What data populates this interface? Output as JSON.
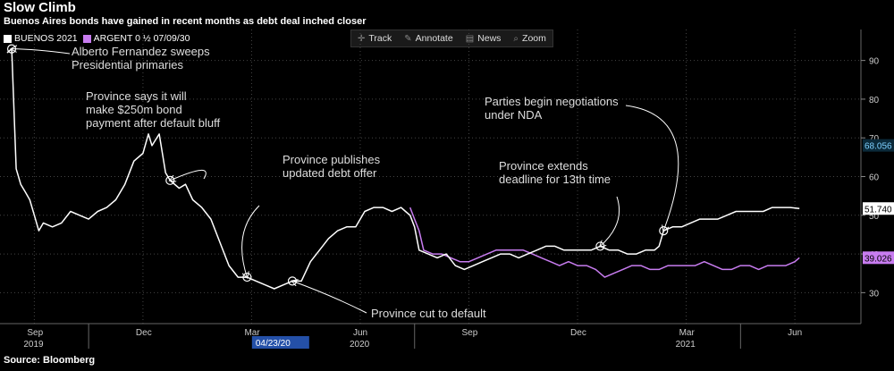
{
  "title": "Slow Climb",
  "subtitle": "Buenos Aires bonds have gained in recent months as debt deal inched closer",
  "legend": {
    "series1": "BUENOS 2021",
    "series2": "ARGENT 0",
    "series2_suffix": "07/09/30",
    "series2_glyph": "½"
  },
  "toolbar": {
    "track": "Track",
    "annotate": "Annotate",
    "news": "News",
    "zoom": "Zoom"
  },
  "source": "Source: Bloomberg",
  "colors": {
    "series1": "#ffffff",
    "series2": "#c87cf0",
    "background": "#000000"
  },
  "chart_data": {
    "type": "line",
    "xlabel": "",
    "ylabel": "",
    "ylim": [
      22,
      98
    ],
    "yticks": [
      30,
      40,
      50,
      60,
      70,
      80,
      90
    ],
    "x_month_ticks": [
      "Sep",
      "Dec",
      "Mar",
      "Jun",
      "Sep",
      "Dec",
      "Mar",
      "Jun"
    ],
    "x_year_labels": [
      "2019",
      "2020",
      "2021"
    ],
    "cursor_date": "04/23/20",
    "last_values": {
      "series1": "51.740",
      "series2": "39.026",
      "marker": "68.056"
    },
    "series": [
      {
        "name": "BUENOS 2021",
        "color": "#ffffff",
        "points": [
          [
            0,
            92
          ],
          [
            0.5,
            93
          ],
          [
            1,
            62
          ],
          [
            1.5,
            58
          ],
          [
            2,
            56
          ],
          [
            2.5,
            54
          ],
          [
            3,
            50
          ],
          [
            3.5,
            46
          ],
          [
            4,
            48
          ],
          [
            5,
            47
          ],
          [
            6,
            48
          ],
          [
            7,
            51
          ],
          [
            8,
            50
          ],
          [
            9,
            49
          ],
          [
            10,
            51
          ],
          [
            11,
            52
          ],
          [
            12,
            54
          ],
          [
            13,
            58
          ],
          [
            14,
            64
          ],
          [
            15,
            66
          ],
          [
            15.6,
            71
          ],
          [
            16,
            68
          ],
          [
            16.8,
            71
          ],
          [
            17.5,
            61
          ],
          [
            18,
            59
          ],
          [
            19,
            57
          ],
          [
            19.7,
            58
          ],
          [
            20.5,
            54
          ],
          [
            21.5,
            52
          ],
          [
            22.5,
            49
          ],
          [
            23.5,
            43
          ],
          [
            24.5,
            37
          ],
          [
            25.5,
            34
          ],
          [
            26.5,
            34
          ],
          [
            27.5,
            33
          ],
          [
            28.5,
            32
          ],
          [
            29.5,
            31
          ],
          [
            30.5,
            32
          ],
          [
            31.5,
            33
          ],
          [
            32.5,
            33
          ],
          [
            33.5,
            38
          ],
          [
            34.5,
            41
          ],
          [
            35.5,
            44
          ],
          [
            36.5,
            46
          ],
          [
            37.5,
            47
          ],
          [
            38.5,
            47
          ],
          [
            39.5,
            51
          ],
          [
            40.5,
            52
          ],
          [
            41.5,
            52
          ],
          [
            42.5,
            51
          ],
          [
            43.5,
            52
          ],
          [
            44,
            51
          ],
          [
            44.5,
            50
          ],
          [
            45,
            47
          ],
          [
            45.5,
            41
          ],
          [
            46.5,
            40
          ],
          [
            47.5,
            39
          ],
          [
            48.5,
            40
          ],
          [
            49.5,
            37
          ],
          [
            50.5,
            36
          ],
          [
            51.5,
            37
          ],
          [
            52.5,
            38
          ],
          [
            53.5,
            39
          ],
          [
            54.5,
            40
          ],
          [
            55.5,
            40
          ],
          [
            56.5,
            39
          ],
          [
            57.5,
            40
          ],
          [
            58.5,
            41
          ],
          [
            59.5,
            42
          ],
          [
            60.5,
            42
          ],
          [
            61.5,
            41
          ],
          [
            62.5,
            41
          ],
          [
            63.5,
            41
          ],
          [
            64.5,
            41
          ],
          [
            65.5,
            42
          ],
          [
            66.5,
            41
          ],
          [
            67.5,
            41
          ],
          [
            68.5,
            40
          ],
          [
            69.5,
            40
          ],
          [
            70.5,
            41
          ],
          [
            71.5,
            41
          ],
          [
            72,
            42
          ],
          [
            72.5,
            46
          ],
          [
            73.5,
            47
          ],
          [
            74.5,
            47
          ],
          [
            75.5,
            48
          ],
          [
            76.5,
            49
          ],
          [
            77.5,
            49
          ],
          [
            78.5,
            49
          ],
          [
            79.5,
            50
          ],
          [
            80.5,
            51
          ],
          [
            81.5,
            51
          ],
          [
            82.5,
            51
          ],
          [
            83.5,
            51
          ],
          [
            84.5,
            52
          ],
          [
            85.5,
            52
          ],
          [
            86.5,
            52
          ],
          [
            87.5,
            51.74
          ]
        ]
      },
      {
        "name": "ARGENT 0 ½ 07/09/30",
        "color": "#c87cf0",
        "points": [
          [
            44.5,
            52
          ],
          [
            45,
            49
          ],
          [
            45.5,
            46
          ],
          [
            46,
            41
          ],
          [
            47,
            40
          ],
          [
            48,
            40
          ],
          [
            49,
            39
          ],
          [
            50,
            38
          ],
          [
            51,
            38
          ],
          [
            52,
            39
          ],
          [
            53,
            40
          ],
          [
            54,
            41
          ],
          [
            55,
            41
          ],
          [
            56,
            41
          ],
          [
            57,
            41
          ],
          [
            58,
            40
          ],
          [
            59,
            39
          ],
          [
            60,
            38
          ],
          [
            61,
            37
          ],
          [
            62,
            38
          ],
          [
            63,
            37
          ],
          [
            64,
            37
          ],
          [
            65,
            36
          ],
          [
            66,
            34
          ],
          [
            67,
            35
          ],
          [
            68,
            36
          ],
          [
            69,
            37
          ],
          [
            70,
            37
          ],
          [
            71,
            36
          ],
          [
            72,
            36
          ],
          [
            73,
            37
          ],
          [
            74,
            37
          ],
          [
            75,
            37
          ],
          [
            76,
            37
          ],
          [
            77,
            38
          ],
          [
            78,
            37
          ],
          [
            79,
            36
          ],
          [
            80,
            36
          ],
          [
            81,
            37
          ],
          [
            82,
            37
          ],
          [
            83,
            36
          ],
          [
            84,
            37
          ],
          [
            85,
            37
          ],
          [
            86,
            37
          ],
          [
            87,
            38
          ],
          [
            87.5,
            39.026
          ]
        ]
      }
    ],
    "circle_markers": [
      {
        "series": 0,
        "x": 0.5
      },
      {
        "series": 0,
        "x": 18
      },
      {
        "series": 0,
        "x": 26.5
      },
      {
        "series": 0,
        "x": 31.5
      },
      {
        "series": 0,
        "x": 65.5
      },
      {
        "series": 0,
        "x": 72.5
      }
    ],
    "annotations": [
      {
        "text": [
          "Alberto Fernandez sweeps",
          "Presidential primaries"
        ]
      },
      {
        "text": [
          "Province says it will",
          "make $250m bond",
          "payment after default bluff"
        ]
      },
      {
        "text": [
          "Province publishes",
          "updated debt offer"
        ]
      },
      {
        "text": [
          "Province cut to default"
        ]
      },
      {
        "text": [
          "Parties begin negotiations",
          "under NDA"
        ]
      },
      {
        "text": [
          "Province extends",
          "deadline for 13th time"
        ]
      }
    ]
  }
}
